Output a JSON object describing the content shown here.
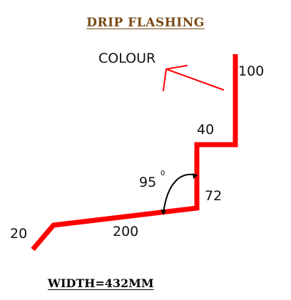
{
  "title": "DRIP FLASHING",
  "colour_label": "COLOUR",
  "dimensions": {
    "left_hook": "20",
    "slope": "200",
    "vertical_short": "72",
    "top_step": "40",
    "top_vertical": "100",
    "angle_value": "95",
    "angle_unit": "0"
  },
  "width_label": "WIDTH=432MM",
  "colors": {
    "profile": "#ff0000",
    "colour_arrow": "#ff0000",
    "title": "#7a4a14",
    "text": "#111111"
  }
}
